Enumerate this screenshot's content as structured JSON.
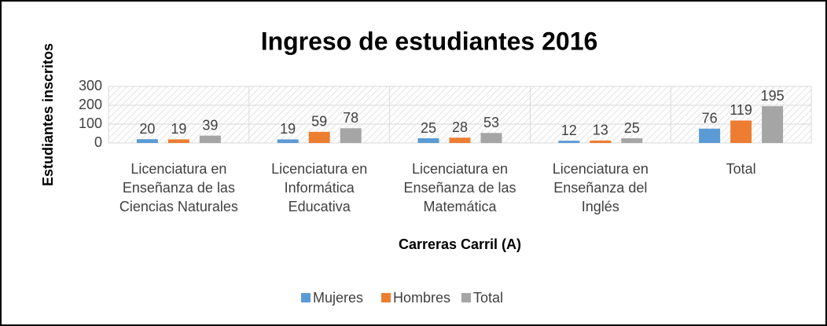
{
  "chart_data": {
    "type": "bar",
    "title": "Ingreso de estudiantes 2016",
    "x_label": "Carreras Carril (A)",
    "y_label": "Estudiantes inscritos",
    "categories": [
      "Licenciatura en Enseñanza de las Ciencias Naturales",
      "Licenciatura en Informática Educativa",
      "Licenciatura en Enseñanza de las Matemática",
      "Licenciatura en Enseñanza del Inglés",
      "Total"
    ],
    "series": [
      {
        "name": "Mujeres",
        "color": "#5b9bd5",
        "values": [
          20,
          19,
          25,
          12,
          76
        ]
      },
      {
        "name": "Hombres",
        "color": "#ed7d31",
        "values": [
          19,
          59,
          28,
          13,
          119
        ]
      },
      {
        "name": "Total",
        "color": "#a5a5a5",
        "values": [
          39,
          78,
          53,
          25,
          195
        ]
      }
    ],
    "ylim": [
      0,
      300
    ],
    "yticks": [
      0,
      100,
      200,
      300
    ],
    "grid": true,
    "legend": "bottom"
  }
}
